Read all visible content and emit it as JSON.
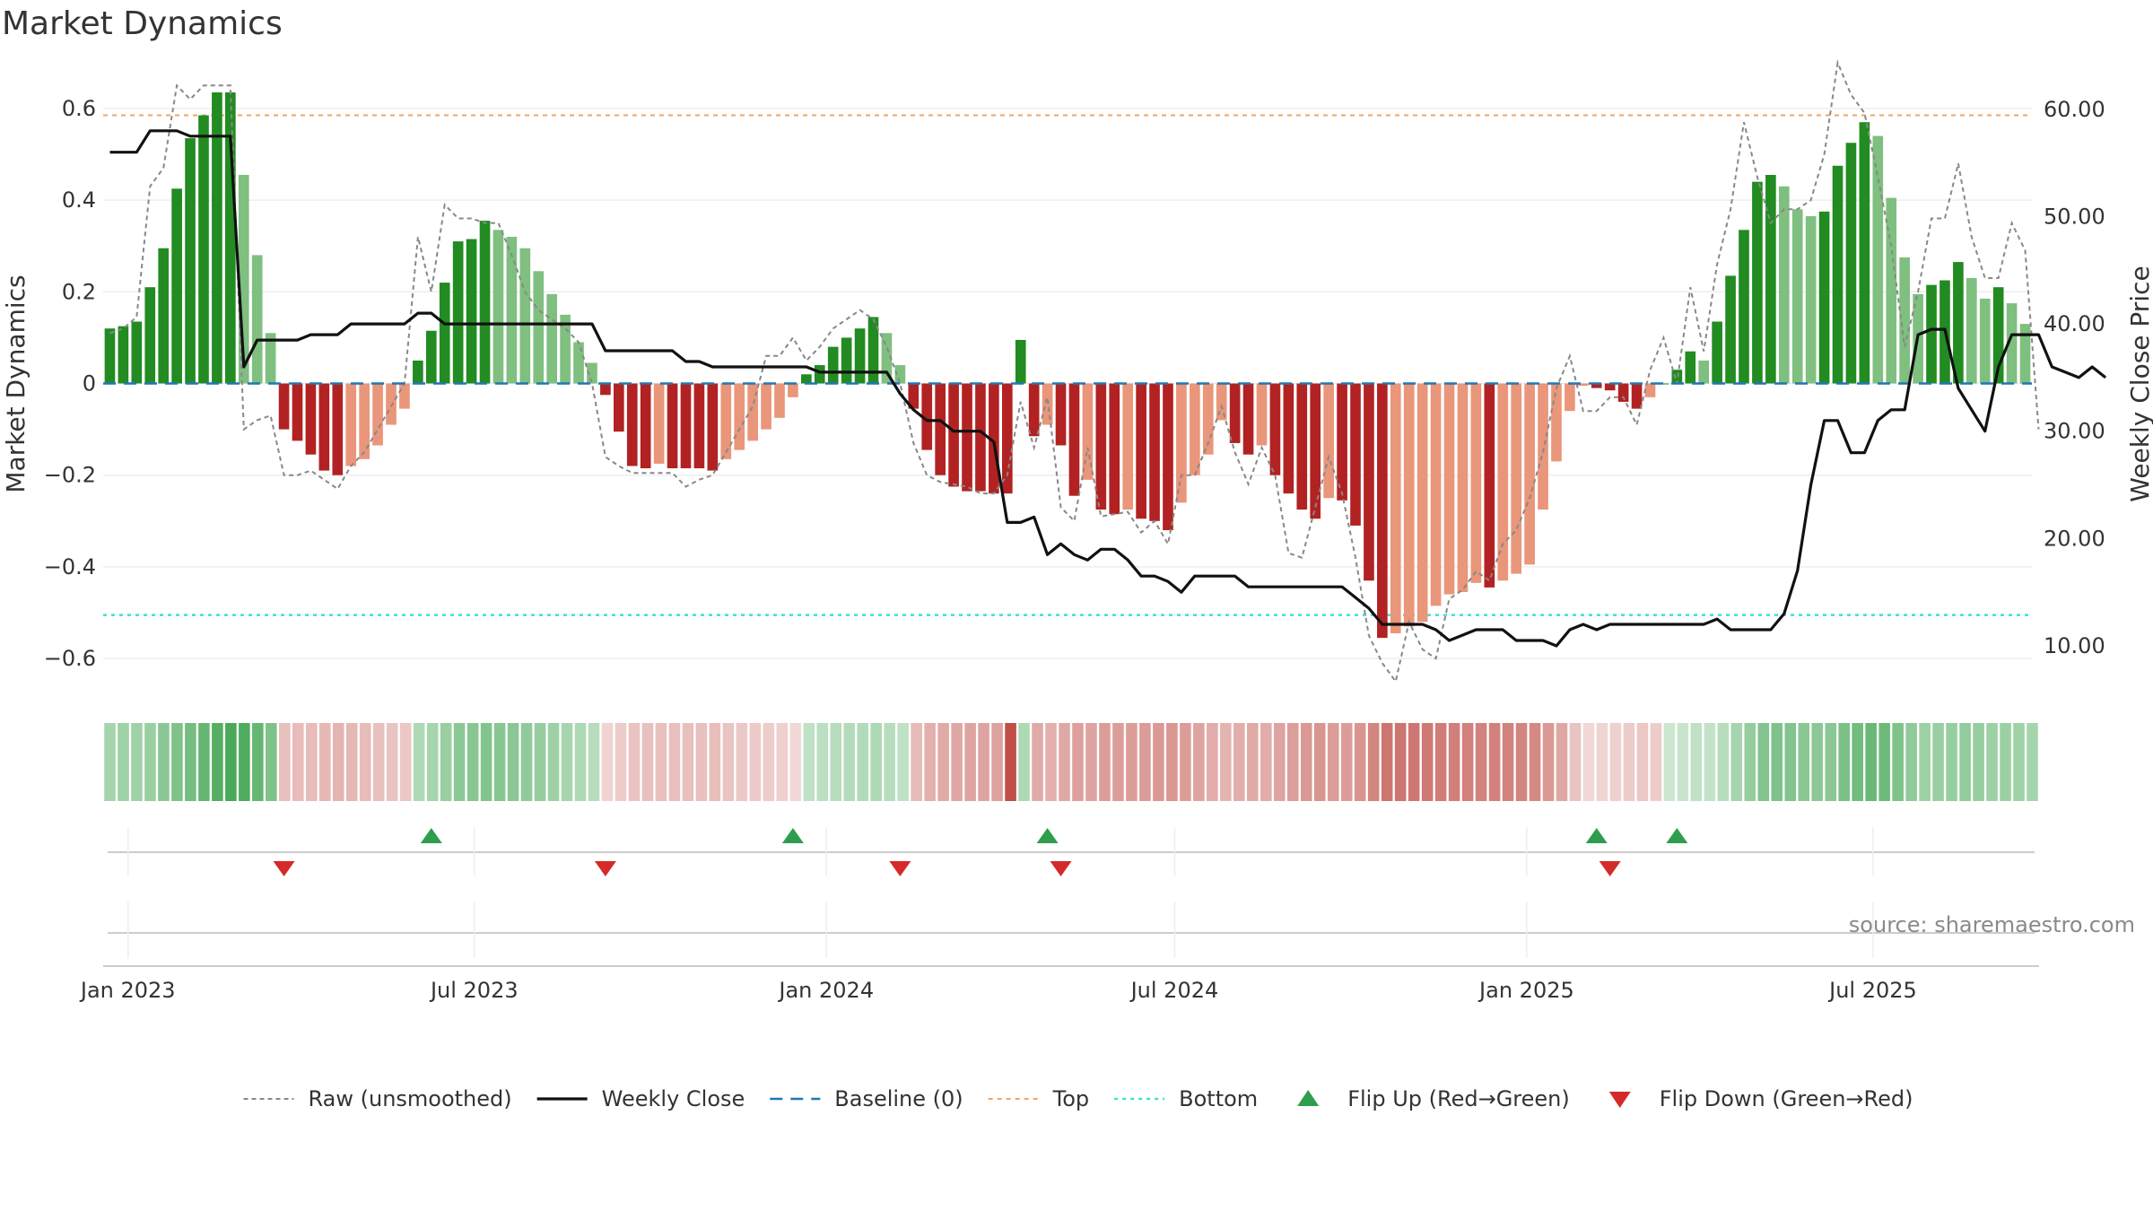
{
  "chart_data": {
    "type": "bar",
    "title": "Market Dynamics",
    "ylabel_left": "Market Dynamics",
    "ylabel_right": "Weekly Close Price",
    "source": "source: sharemaestro.com",
    "ylim_left": [
      -0.68,
      0.68
    ],
    "ylim_right": [
      5.4,
      63.5
    ],
    "y_ticks_left": [
      -0.6,
      -0.4,
      -0.2,
      0,
      0.2,
      0.4,
      0.6
    ],
    "y_ticks_left_labels": [
      "−0.6",
      "−0.4",
      "−0.2",
      "0",
      "0.2",
      "0.4",
      "0.6"
    ],
    "y_ticks_right": [
      10,
      20,
      30,
      40,
      50,
      60
    ],
    "y_ticks_right_labels": [
      "10.00",
      "20.00",
      "30.00",
      "40.00",
      "50.00",
      "60.00"
    ],
    "x_ticks": [
      "2023-01-01",
      "2023-07-01",
      "2024-01-01",
      "2024-07-01",
      "2025-01-01",
      "2025-07-01"
    ],
    "x_tick_labels": [
      "Jan 2023",
      "Jul 2023",
      "Jan 2024",
      "Jul 2024",
      "Jan 2025",
      "Jul 2025"
    ],
    "start_date": "2022-12-19",
    "end_date": "2025-09-22",
    "top_level": 0.585,
    "bottom_level": -0.505,
    "baseline": 0,
    "smoothed": [
      0.12,
      0.125,
      0.135,
      0.21,
      0.295,
      0.425,
      0.535,
      0.585,
      0.635,
      0.635,
      0.455,
      0.28,
      0.11,
      -0.1,
      -0.125,
      -0.155,
      -0.19,
      -0.2,
      -0.18,
      -0.165,
      -0.135,
      -0.09,
      -0.055,
      0.05,
      0.115,
      0.22,
      0.31,
      0.315,
      0.355,
      0.335,
      0.32,
      0.295,
      0.245,
      0.195,
      0.15,
      0.09,
      0.045,
      -0.025,
      -0.105,
      -0.18,
      -0.185,
      -0.175,
      -0.185,
      -0.185,
      -0.185,
      -0.19,
      -0.165,
      -0.145,
      -0.125,
      -0.1,
      -0.075,
      -0.03,
      0.02,
      0.04,
      0.08,
      0.1,
      0.12,
      0.145,
      0.11,
      0.04,
      -0.055,
      -0.145,
      -0.2,
      -0.225,
      -0.235,
      -0.235,
      -0.24,
      -0.24,
      0.095,
      -0.115,
      -0.09,
      -0.135,
      -0.245,
      -0.21,
      -0.275,
      -0.285,
      -0.275,
      -0.295,
      -0.3,
      -0.32,
      -0.26,
      -0.2,
      -0.155,
      -0.08,
      -0.13,
      -0.155,
      -0.135,
      -0.2,
      -0.24,
      -0.275,
      -0.295,
      -0.25,
      -0.255,
      -0.31,
      -0.43,
      -0.555,
      -0.545,
      -0.53,
      -0.52,
      -0.485,
      -0.46,
      -0.455,
      -0.435,
      -0.445,
      -0.43,
      -0.415,
      -0.395,
      -0.275,
      -0.17,
      -0.06,
      -0.005,
      -0.01,
      -0.015,
      -0.04,
      -0.055,
      -0.03,
      0,
      0.03,
      0.07,
      0.05,
      0.135,
      0.235,
      0.335,
      0.44,
      0.455,
      0.43,
      0.38,
      0.365,
      0.375,
      0.475,
      0.525,
      0.57,
      0.54,
      0.405,
      0.275,
      0.195,
      0.215,
      0.225,
      0.265,
      0.23,
      0.185,
      0.21,
      0.175,
      0.13
    ],
    "raw": [
      0.11,
      0.12,
      0.145,
      0.43,
      0.47,
      0.65,
      0.62,
      0.65,
      0.65,
      0.65,
      -0.1,
      -0.08,
      -0.07,
      -0.2,
      -0.2,
      -0.19,
      -0.21,
      -0.23,
      -0.18,
      -0.15,
      -0.1,
      -0.05,
      0,
      0.32,
      0.2,
      0.39,
      0.36,
      0.36,
      0.35,
      0.35,
      0.28,
      0.2,
      0.16,
      0.14,
      0.12,
      0.09,
      0,
      -0.16,
      -0.18,
      -0.195,
      -0.195,
      -0.195,
      -0.195,
      -0.225,
      -0.21,
      -0.2,
      -0.15,
      -0.1,
      -0.05,
      0.06,
      0.06,
      0.1,
      0.05,
      0.08,
      0.12,
      0.14,
      0.16,
      0.14,
      0.08,
      0,
      -0.13,
      -0.2,
      -0.215,
      -0.22,
      -0.225,
      -0.24,
      -0.24,
      -0.2,
      -0.04,
      -0.14,
      -0.03,
      -0.27,
      -0.3,
      -0.14,
      -0.29,
      -0.285,
      -0.28,
      -0.325,
      -0.3,
      -0.35,
      -0.2,
      -0.2,
      -0.13,
      -0.05,
      -0.15,
      -0.22,
      -0.14,
      -0.2,
      -0.37,
      -0.38,
      -0.27,
      -0.16,
      -0.24,
      -0.38,
      -0.55,
      -0.61,
      -0.65,
      -0.52,
      -0.58,
      -0.6,
      -0.47,
      -0.45,
      -0.41,
      -0.43,
      -0.35,
      -0.32,
      -0.25,
      -0.15,
      -0.01,
      0.06,
      -0.06,
      -0.06,
      -0.03,
      -0.03,
      -0.09,
      0.03,
      0.1,
      0,
      0.21,
      0.07,
      0.26,
      0.38,
      0.57,
      0.45,
      0.35,
      0.38,
      0.38,
      0.4,
      0.5,
      0.7,
      0.63,
      0.59,
      0.45,
      0.3,
      0.08,
      0.2,
      0.36,
      0.36,
      0.48,
      0.32,
      0.23,
      0.23,
      0.35,
      0.29,
      -0.1
    ],
    "close": [
      56,
      56,
      56,
      58,
      58,
      58,
      57.5,
      57.5,
      57.5,
      57.5,
      36,
      38.5,
      38.5,
      38.5,
      38.5,
      39,
      39,
      39,
      40,
      40,
      40,
      40,
      40,
      41,
      41,
      40,
      40,
      40,
      40,
      40,
      40,
      40,
      40,
      40,
      40,
      40,
      40,
      37.5,
      37.5,
      37.5,
      37.5,
      37.5,
      37.5,
      36.5,
      36.5,
      36,
      36,
      36,
      36,
      36,
      36,
      36,
      36,
      35.5,
      35.5,
      35.5,
      35.5,
      35.5,
      35.5,
      33.5,
      32,
      31,
      31,
      30,
      30,
      30,
      29,
      21.5,
      21.5,
      22,
      18.5,
      19.5,
      18.5,
      18,
      19,
      19,
      18,
      16.5,
      16.5,
      16,
      15,
      16.5,
      16.5,
      16.5,
      16.5,
      15.5,
      15.5,
      15.5,
      15.5,
      15.5,
      15.5,
      15.5,
      15.5,
      14.5,
      13.5,
      12,
      12,
      12,
      12,
      11.5,
      10.5,
      11,
      11.5,
      11.5,
      11.5,
      10.5,
      10.5,
      10.5,
      10,
      11.5,
      12,
      11.5,
      12,
      12,
      12,
      12,
      12,
      12,
      12,
      12,
      12.5,
      11.5,
      11.5,
      11.5,
      11.5,
      13,
      17,
      25,
      31,
      31,
      28,
      28,
      31,
      32,
      32,
      39,
      39.5,
      39.5,
      34,
      32,
      30,
      36,
      39,
      39,
      39,
      36,
      35.5,
      35,
      36,
      35
    ],
    "flip_up": [
      "2023-06-05",
      "2023-12-11",
      "2024-04-22",
      "2025-02-03",
      "2025-03-17"
    ],
    "flip_down": [
      "2023-03-20",
      "2023-09-04",
      "2024-02-05",
      "2024-04-29",
      "2025-02-10"
    ],
    "strip_weights": [
      0.42,
      0.45,
      0.45,
      0.48,
      0.55,
      0.6,
      0.65,
      0.72,
      0.8,
      0.85,
      0.82,
      0.72,
      0.6,
      0.32,
      0.34,
      0.34,
      0.36,
      0.38,
      0.36,
      0.34,
      0.32,
      0.3,
      0.28,
      0.38,
      0.42,
      0.48,
      0.54,
      0.56,
      0.58,
      0.56,
      0.55,
      0.52,
      0.5,
      0.46,
      0.42,
      0.38,
      0.34,
      0.22,
      0.26,
      0.3,
      0.32,
      0.32,
      0.32,
      0.32,
      0.32,
      0.33,
      0.3,
      0.28,
      0.27,
      0.26,
      0.24,
      0.2,
      0.3,
      0.32,
      0.34,
      0.35,
      0.36,
      0.38,
      0.34,
      0.3,
      0.35,
      0.4,
      0.43,
      0.45,
      0.46,
      0.46,
      0.47,
      0.9,
      0.38,
      0.43,
      0.4,
      0.44,
      0.48,
      0.46,
      0.5,
      0.5,
      0.5,
      0.51,
      0.52,
      0.53,
      0.5,
      0.46,
      0.42,
      0.38,
      0.41,
      0.43,
      0.42,
      0.46,
      0.49,
      0.52,
      0.54,
      0.5,
      0.5,
      0.54,
      0.62,
      0.7,
      0.7,
      0.69,
      0.68,
      0.66,
      0.65,
      0.64,
      0.63,
      0.64,
      0.63,
      0.62,
      0.6,
      0.52,
      0.44,
      0.3,
      0.2,
      0.22,
      0.24,
      0.26,
      0.28,
      0.26,
      0.24,
      0.26,
      0.3,
      0.28,
      0.34,
      0.42,
      0.5,
      0.58,
      0.6,
      0.58,
      0.55,
      0.54,
      0.55,
      0.62,
      0.66,
      0.7,
      0.68,
      0.6,
      0.52,
      0.46,
      0.48,
      0.49,
      0.51,
      0.49,
      0.46,
      0.47,
      0.45,
      0.42
    ],
    "legend": [
      {
        "key": "raw",
        "label": "Raw (unsmoothed)"
      },
      {
        "key": "close",
        "label": "Weekly Close"
      },
      {
        "key": "baseline",
        "label": "Baseline (0)"
      },
      {
        "key": "top",
        "label": "Top"
      },
      {
        "key": "bottom",
        "label": "Bottom"
      },
      {
        "key": "flip_up",
        "label": "Flip Up (Red→Green)"
      },
      {
        "key": "flip_down",
        "label": "Flip Down (Green→Red)"
      }
    ],
    "legend_position": "bottom-center"
  },
  "colors": {
    "green_strong": "#228b22",
    "green_light": "#7fbf7f",
    "red_strong": "#b22222",
    "red_light": "#e9967a",
    "close_line": "#111111",
    "raw_line": "#888888",
    "baseline": "#1f77b4",
    "top": "#f4a460",
    "bottom": "#40e0d0",
    "flip_up": "#2e9e4e",
    "flip_down": "#d42a2a",
    "grid": "#eeeeee"
  }
}
